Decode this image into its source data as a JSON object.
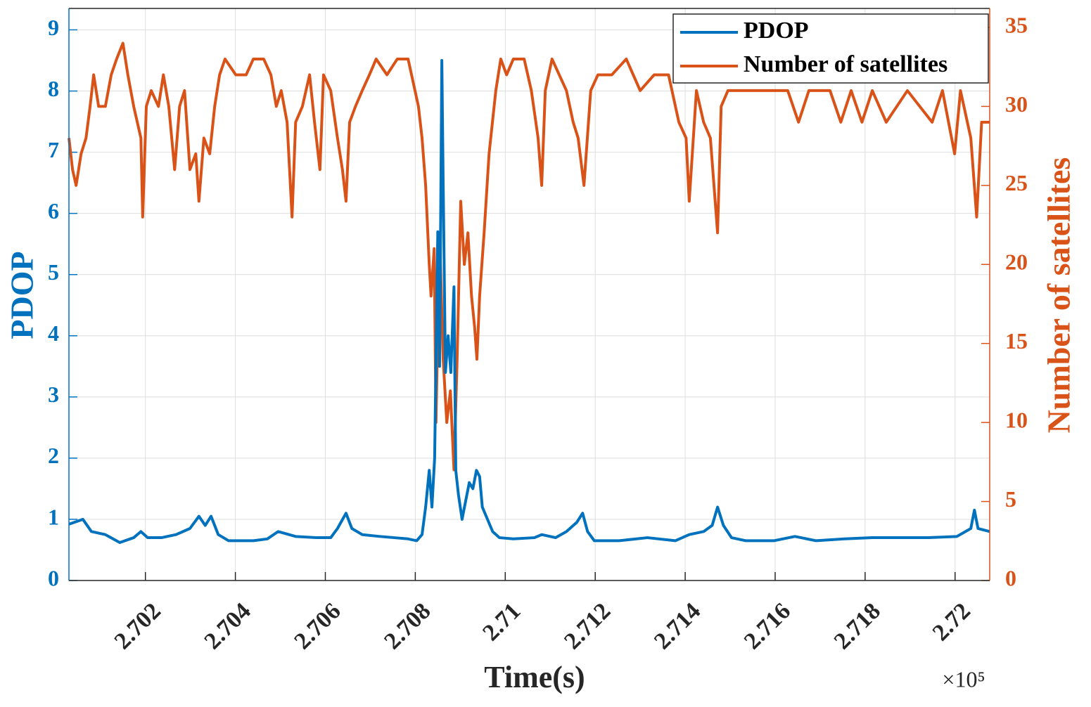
{
  "chart_data": {
    "type": "line",
    "x_label": "Time(s)",
    "x_exponent_label": "×10⁵",
    "y_label": "PDOP",
    "y2_label": "Number of satellites",
    "xlim": [
      270030,
      272077
    ],
    "xticks": [
      {
        "value": 270200,
        "label": "2.702"
      },
      {
        "value": 270400,
        "label": "2.704"
      },
      {
        "value": 270600,
        "label": "2.706"
      },
      {
        "value": 270800,
        "label": "2.708"
      },
      {
        "value": 271000,
        "label": "2.71"
      },
      {
        "value": 271200,
        "label": "2.712"
      },
      {
        "value": 271400,
        "label": "2.714"
      },
      {
        "value": 271600,
        "label": "2.716"
      },
      {
        "value": 271800,
        "label": "2.718"
      },
      {
        "value": 272000,
        "label": "2.72"
      }
    ],
    "ylim": [
      0,
      9.35
    ],
    "yticks": [
      0,
      1,
      2,
      3,
      4,
      5,
      6,
      7,
      8,
      9
    ],
    "y2lim": [
      0,
      36.2
    ],
    "y2ticks": [
      0,
      5,
      10,
      15,
      20,
      25,
      30,
      35
    ],
    "y_color": "#0072BD",
    "y2_color": "#D95319",
    "grid": true,
    "legend": "upper right",
    "series": [
      {
        "name": "PDOP",
        "color": "#0072BD",
        "x": [
          270030,
          270061,
          270080,
          270111,
          270143,
          270174,
          270190,
          270205,
          270236,
          270268,
          270299,
          270319,
          270333,
          270346,
          270362,
          270385,
          270440,
          270471,
          270495,
          270534,
          270581,
          270612,
          270627,
          270646,
          270659,
          270682,
          270721,
          270753,
          270784,
          270803,
          270815,
          270823,
          270831,
          270837,
          270843,
          270850,
          270854,
          270859,
          270862,
          270867,
          270873,
          270879,
          270886,
          270890,
          270896,
          270904,
          270912,
          270920,
          270928,
          270936,
          270943,
          270949,
          270972,
          270987,
          271018,
          271065,
          271081,
          271112,
          271136,
          271159,
          271172,
          271183,
          271198,
          271253,
          271316,
          271378,
          271409,
          271441,
          271460,
          271472,
          271485,
          271503,
          271535,
          271597,
          271644,
          271691,
          271754,
          271816,
          271879,
          271941,
          272004,
          272035,
          272043,
          272051,
          272077
        ],
        "values": [
          0.92,
          1.0,
          0.8,
          0.75,
          0.62,
          0.7,
          0.8,
          0.7,
          0.7,
          0.75,
          0.85,
          1.05,
          0.9,
          1.05,
          0.75,
          0.65,
          0.65,
          0.68,
          0.8,
          0.72,
          0.7,
          0.7,
          0.85,
          1.1,
          0.85,
          0.75,
          0.72,
          0.7,
          0.68,
          0.65,
          0.75,
          1.2,
          1.8,
          1.2,
          2.0,
          5.7,
          3.5,
          8.5,
          6.5,
          3.4,
          4.0,
          3.4,
          4.8,
          1.8,
          1.4,
          1.0,
          1.3,
          1.6,
          1.5,
          1.8,
          1.7,
          1.2,
          0.8,
          0.7,
          0.68,
          0.7,
          0.75,
          0.7,
          0.8,
          0.95,
          1.1,
          0.8,
          0.65,
          0.65,
          0.7,
          0.65,
          0.75,
          0.8,
          0.9,
          1.2,
          0.9,
          0.7,
          0.65,
          0.65,
          0.72,
          0.65,
          0.68,
          0.7,
          0.7,
          0.7,
          0.72,
          0.85,
          1.15,
          0.85,
          0.8
        ]
      },
      {
        "name": "Number of satellites",
        "color": "#D95319",
        "axis": "y2",
        "x": [
          270030,
          270038,
          270046,
          270057,
          270068,
          270077,
          270085,
          270096,
          270111,
          270124,
          270136,
          270150,
          270161,
          270174,
          270190,
          270194,
          270202,
          270213,
          270229,
          270240,
          270252,
          270265,
          270276,
          270287,
          270299,
          270312,
          270319,
          270330,
          270343,
          270354,
          270365,
          270377,
          270401,
          270424,
          270440,
          270463,
          270479,
          270491,
          270502,
          270515,
          270526,
          270534,
          270549,
          270565,
          270576,
          270588,
          270596,
          270612,
          270627,
          270638,
          270646,
          270654,
          270667,
          270682,
          270698,
          270713,
          270737,
          270760,
          270784,
          270807,
          270815,
          270823,
          270831,
          270835,
          270842,
          270846,
          270854,
          270862,
          270870,
          270878,
          270886,
          270893,
          270901,
          270909,
          270917,
          270925,
          270932,
          270937,
          270943,
          270953,
          270964,
          270979,
          270990,
          271003,
          271018,
          271042,
          271058,
          271073,
          271081,
          271089,
          271104,
          271120,
          271136,
          271151,
          271162,
          271175,
          271190,
          271206,
          271237,
          271269,
          271300,
          271331,
          271363,
          271386,
          271402,
          271409,
          271425,
          271441,
          271456,
          271472,
          271480,
          271495,
          271535,
          271582,
          271628,
          271652,
          271675,
          271722,
          271746,
          271769,
          271793,
          271816,
          271847,
          271894,
          271949,
          271972,
          271999,
          272012,
          272035,
          272048,
          272059,
          272077
        ],
        "values": [
          28,
          26,
          25,
          27,
          28,
          30,
          32,
          30,
          30,
          32,
          33,
          34,
          32,
          30,
          28,
          23,
          30,
          31,
          30,
          32,
          30,
          26,
          30,
          31,
          26,
          27,
          24,
          28,
          27,
          30,
          32,
          33,
          32,
          32,
          33,
          33,
          32,
          30,
          31,
          29,
          23,
          29,
          30,
          32,
          29,
          26,
          32,
          31,
          28,
          26,
          24,
          29,
          30,
          31,
          32,
          33,
          32,
          33,
          33,
          30,
          28,
          25,
          20,
          18,
          21,
          10,
          22,
          14,
          10,
          12,
          7,
          14,
          24,
          20,
          22,
          18,
          16,
          14,
          18,
          22,
          27,
          31,
          33,
          32,
          33,
          33,
          31,
          28,
          25,
          31,
          33,
          32,
          31,
          29,
          28,
          25,
          31,
          32,
          32,
          33,
          31,
          32,
          32,
          29,
          28,
          24,
          31,
          29,
          28,
          22,
          30,
          31,
          31,
          31,
          31,
          29,
          31,
          31,
          29,
          31,
          29,
          31,
          29,
          31,
          29,
          31,
          27,
          31,
          28,
          23,
          29,
          29
        ]
      }
    ]
  }
}
